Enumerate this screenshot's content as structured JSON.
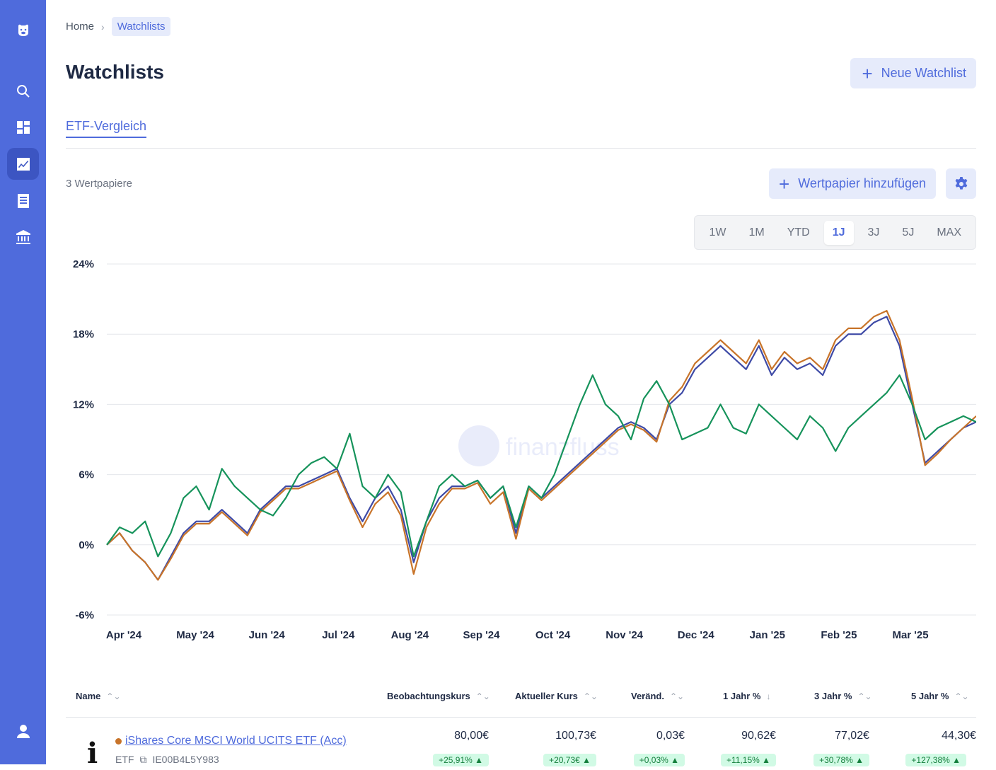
{
  "sidebar": {
    "icons": [
      "logo-icon",
      "search-icon",
      "dashboard-icon",
      "chart-icon",
      "list-icon",
      "bank-icon",
      "user-icon"
    ]
  },
  "breadcrumb": {
    "home": "Home",
    "current": "Watchlists"
  },
  "header": {
    "title": "Watchlists",
    "new_button": "Neue Watchlist"
  },
  "tabs": [
    {
      "label": "ETF-Vergleich"
    }
  ],
  "toolbar": {
    "count": "3 Wertpapiere",
    "add_button": "Wertpapier hinzufügen"
  },
  "ranges": [
    "1W",
    "1M",
    "YTD",
    "1J",
    "3J",
    "5J",
    "MAX"
  ],
  "active_range": "1J",
  "watermark": "finanzfluss",
  "colors": {
    "accent": "#4f6bdc",
    "series_blue": "#3e4aa6",
    "series_orange": "#c8742a",
    "series_green": "#16935b"
  },
  "chart_data": {
    "type": "line",
    "x_labels": [
      "Apr '24",
      "May '24",
      "Jun '24",
      "Jul '24",
      "Aug '24",
      "Sep '24",
      "Oct '24",
      "Nov '24",
      "Dec '24",
      "Jan '25",
      "Feb '25",
      "Mar '25"
    ],
    "y_ticks": [
      "24%",
      "18%",
      "12%",
      "6%",
      "0%",
      "-6%"
    ],
    "ylim": [
      -6,
      24
    ],
    "grid": true,
    "series": [
      {
        "color": "#3e4aa6",
        "values": [
          0,
          1,
          -0.5,
          -1.5,
          -3,
          -1,
          1,
          2,
          2,
          3,
          2,
          1,
          3,
          4,
          5,
          5,
          5.5,
          6,
          6.5,
          4,
          2,
          4,
          5,
          3,
          -1.5,
          2,
          4,
          5,
          5,
          5.5,
          4,
          5,
          1,
          5,
          4,
          5,
          6,
          7,
          8,
          9,
          10,
          10.5,
          10,
          9,
          12,
          13,
          15,
          16,
          17,
          16,
          15,
          17,
          14.5,
          16,
          15,
          15.5,
          14.5,
          17,
          18,
          18,
          19,
          19.5,
          17,
          12,
          7,
          8,
          9,
          10,
          10.5
        ]
      },
      {
        "color": "#c8742a",
        "values": [
          0,
          1,
          -0.5,
          -1.5,
          -3,
          -1.2,
          0.8,
          1.8,
          1.8,
          2.8,
          1.8,
          0.8,
          2.8,
          3.8,
          4.8,
          4.8,
          5.3,
          5.8,
          6.3,
          3.8,
          1.5,
          3.5,
          4.5,
          2.5,
          -2.5,
          1.5,
          3.5,
          4.8,
          4.8,
          5.3,
          3.5,
          4.5,
          0.5,
          4.8,
          3.8,
          4.8,
          5.8,
          6.8,
          7.8,
          8.8,
          9.8,
          10.3,
          9.8,
          8.8,
          12.3,
          13.5,
          15.5,
          16.5,
          17.5,
          16.5,
          15.5,
          17.5,
          15,
          16.5,
          15.5,
          16,
          15,
          17.5,
          18.5,
          18.5,
          19.5,
          20,
          17.5,
          12.5,
          6.8,
          7.8,
          9,
          10,
          11
        ]
      },
      {
        "color": "#16935b",
        "values": [
          0,
          1.5,
          1,
          2,
          -1,
          1,
          4,
          5,
          3,
          6.5,
          5,
          4,
          3,
          2.5,
          4,
          6,
          7,
          7.5,
          6.5,
          9.5,
          5,
          4,
          6,
          4.5,
          -1,
          2,
          5,
          6,
          5,
          5.5,
          4,
          5,
          1.5,
          5,
          4,
          6,
          9,
          12,
          14.5,
          12,
          11,
          9,
          12.5,
          14,
          12,
          9,
          9.5,
          10,
          12,
          10,
          9.5,
          12,
          11,
          10,
          9,
          11,
          10,
          8,
          10,
          11,
          12,
          13,
          14.5,
          12,
          9,
          10,
          10.5,
          11,
          10.5
        ]
      }
    ]
  },
  "table": {
    "headers": {
      "name": "Name",
      "obs": "Beobachtungskurs",
      "current": "Aktueller Kurs",
      "change": "Veränd.",
      "y1": "1 Jahr %",
      "y3": "3 Jahr %",
      "y5": "5 Jahr %"
    },
    "rows": [
      {
        "logo": "i",
        "name": "iShares Core MSCI World UCITS ETF (Acc)",
        "type": "ETF",
        "isin": "IE00B4L5Y983",
        "obs": "80,00€",
        "current": "100,73€",
        "change": "0,03€",
        "y1": "90,62€",
        "y3": "77,02€",
        "y5": "44,30€",
        "obs_pct": "+25,91% ▲",
        "current_pct": "+20,73€ ▲",
        "change_pct": "+0,03% ▲",
        "y1_pct": "+11,15% ▲",
        "y3_pct": "+30,78% ▲",
        "y5_pct": "+127,38% ▲"
      }
    ]
  }
}
